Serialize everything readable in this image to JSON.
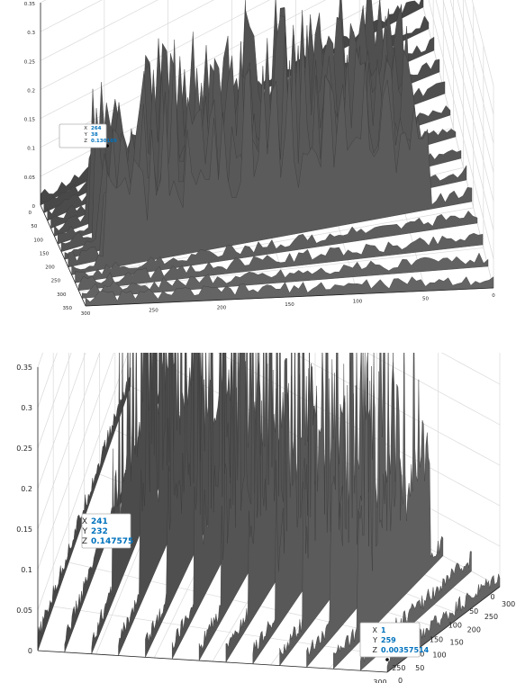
{
  "chart_data": [
    {
      "type": "surface",
      "title": "",
      "xlabel": "",
      "ylabel": "",
      "zlabel": "",
      "x_ticks": [
        "300",
        "250",
        "200",
        "150",
        "100",
        "50",
        "0"
      ],
      "y_ticks": [
        "0",
        "50",
        "100",
        "150",
        "200",
        "250",
        "300",
        "350"
      ],
      "z_ticks": [
        "0",
        "0.05",
        "0.1",
        "0.15",
        "0.2",
        "0.25",
        "0.3",
        "0.35"
      ],
      "xlim": [
        0,
        300
      ],
      "ylim": [
        0,
        350
      ],
      "zlim": [
        0,
        0.35
      ],
      "grid": true,
      "surface_color": "#5a5a5a",
      "ridge_peaks_z": [
        0.17,
        0.12,
        0.2,
        0.27,
        0.18,
        0.2,
        0.19,
        0.23,
        0.22,
        0.26,
        0.2,
        0.17,
        0.21,
        0.15,
        0.17,
        0.12
      ],
      "datatips": [
        {
          "x_label": "X",
          "x": "264",
          "y_label": "Y",
          "y": "38",
          "z_label": "Z",
          "z": "0.130189"
        }
      ]
    },
    {
      "type": "surface",
      "title": "",
      "xlabel": "",
      "ylabel": "",
      "zlabel": "",
      "x_ticks": [
        "300",
        "250",
        "200",
        "150",
        "100",
        "50",
        "0"
      ],
      "y_ticks": [
        "0",
        "50",
        "100",
        "150",
        "200",
        "250",
        "300"
      ],
      "z_ticks": [
        "0",
        "0.05",
        "0.1",
        "0.15",
        "0.2",
        "0.25",
        "0.3",
        "0.35"
      ],
      "xlim": [
        0,
        300
      ],
      "ylim": [
        0,
        300
      ],
      "zlim": [
        0,
        0.35
      ],
      "grid": true,
      "surface_color": "#5a5a5a",
      "ridge_peaks_z": [
        0.13,
        0.28,
        0.25,
        0.22,
        0.27,
        0.22,
        0.3,
        0.26,
        0.2,
        0.24,
        0.22,
        0.27,
        0.2,
        0.16,
        0.09
      ],
      "datatips": [
        {
          "x_label": "X",
          "x": "241",
          "y_label": "Y",
          "y": "232",
          "z_label": "Z",
          "z": "0.147575"
        },
        {
          "x_label": "X",
          "x": "1",
          "y_label": "Y",
          "y": "259",
          "z_label": "Z",
          "z": "0.00357514"
        }
      ]
    }
  ]
}
